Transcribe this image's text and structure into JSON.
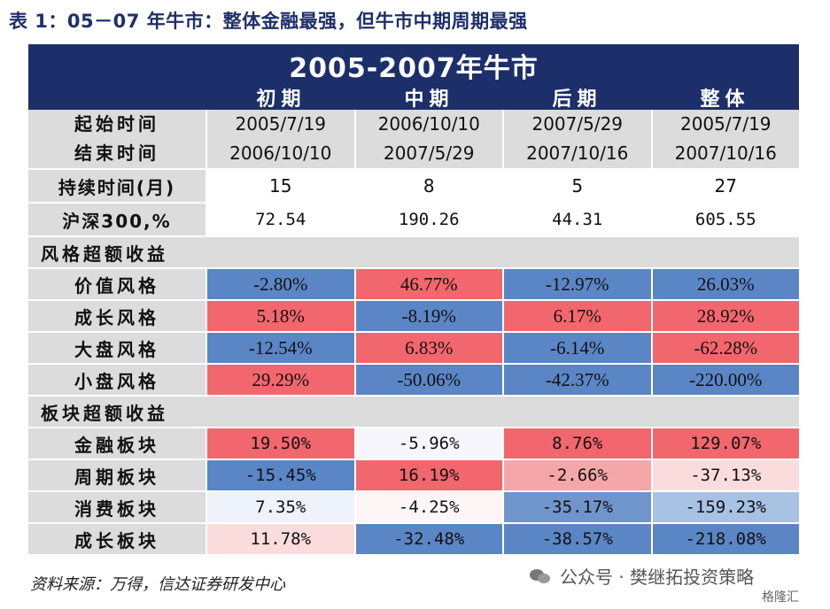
{
  "caption": "表 1：05－07 年牛市：整体金融最强，但牛市中期周期最强",
  "banner_title": "2005-2007年牛市",
  "columns": [
    "初期",
    "中期",
    "后期",
    "整体"
  ],
  "date_rows": {
    "start_label": "起始时间",
    "end_label": "结束时间",
    "start": [
      "2005/7/19",
      "2006/10/10",
      "2007/5/29",
      "2005/7/19"
    ],
    "end": [
      "2006/10/10",
      "2007/5/29",
      "2007/10/16",
      "2007/10/16"
    ]
  },
  "duration": {
    "label": "持续时间(月)",
    "values": [
      "15",
      "8",
      "5",
      "27"
    ]
  },
  "hs300": {
    "label": "沪深300,%",
    "values": [
      "72.54",
      "190.26",
      "44.31",
      "605.55"
    ]
  },
  "style_section": "风格超额收益",
  "style_rows": [
    {
      "label": "价值风格",
      "values": [
        "-2.80%",
        "46.77%",
        "-12.97%",
        "26.03%"
      ],
      "colors": [
        "#5b86c6",
        "#f2676d",
        "#5b86c6",
        "#5b86c6"
      ]
    },
    {
      "label": "成长风格",
      "values": [
        "5.18%",
        "-8.19%",
        "6.17%",
        "28.92%"
      ],
      "colors": [
        "#f2676d",
        "#5b86c6",
        "#f2676d",
        "#f2676d"
      ]
    },
    {
      "label": "大盘风格",
      "values": [
        "-12.54%",
        "6.83%",
        "-6.14%",
        "-62.28%"
      ],
      "colors": [
        "#5b86c6",
        "#f2676d",
        "#5b86c6",
        "#f2676d"
      ]
    },
    {
      "label": "小盘风格",
      "values": [
        "29.29%",
        "-50.06%",
        "-42.37%",
        "-220.00%"
      ],
      "colors": [
        "#f2676d",
        "#5b86c6",
        "#5b86c6",
        "#5b86c6"
      ]
    }
  ],
  "sector_section": "板块超额收益",
  "sector_rows": [
    {
      "label": "金融板块",
      "values": [
        "19.50%",
        "-5.96%",
        "8.76%",
        "129.07%"
      ],
      "colors": [
        "#f2676d",
        "#f6f6fc",
        "#f2676d",
        "#f2676d"
      ]
    },
    {
      "label": "周期板块",
      "values": [
        "-15.45%",
        "16.19%",
        "-2.66%",
        "-37.13%"
      ],
      "colors": [
        "#5b86c6",
        "#f2676d",
        "#f5a6a8",
        "#fbdcdd"
      ]
    },
    {
      "label": "消费板块",
      "values": [
        "7.35%",
        "-4.25%",
        "-35.17%",
        "-159.23%"
      ],
      "colors": [
        "#eef2fa",
        "#fdf5f6",
        "#6f95cc",
        "#a8c2e4"
      ]
    },
    {
      "label": "成长板块",
      "values": [
        "11.78%",
        "-32.48%",
        "-38.57%",
        "-218.08%"
      ],
      "colors": [
        "#fbdcdd",
        "#5b86c6",
        "#5b86c6",
        "#5b86c6"
      ]
    }
  ],
  "source": "资料来源：万得，信达证券研发中心",
  "watermark": "公众号 · 樊继拓投资策略",
  "watermark_icon": "wechat-icon",
  "corner_mark": "格隆汇"
}
